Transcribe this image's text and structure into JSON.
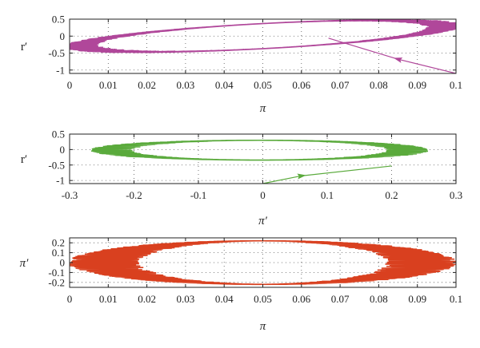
{
  "chart_data": [
    {
      "type": "line",
      "xlabel": "π",
      "ylabel": "r′",
      "xlim": [
        0,
        0.1
      ],
      "ylim": [
        -1.1,
        0.5
      ],
      "xticks": [
        "0",
        "0.01",
        "0.02",
        "0.03",
        "0.04",
        "0.05",
        "0.06",
        "0.07",
        "0.08",
        "0.09",
        "0.1"
      ],
      "yticks": [
        "0.5",
        "0",
        "-0.5",
        "-1"
      ],
      "grid": true,
      "color": "#b0479a",
      "series": [
        {
          "orbit": {
            "cx": 0.05,
            "cy": 0.0,
            "ax": 0.047,
            "ay": 0.37,
            "skew": 0.05,
            "loops": 14,
            "jitter": 0.0015
          },
          "transient": [
            [
              0.1,
              -1.1
            ],
            [
              0.085,
              -0.68
            ],
            [
              0.067,
              -0.06
            ]
          ],
          "arrow_at": [
            0.085,
            -0.68
          ]
        }
      ]
    },
    {
      "type": "line",
      "xlabel": "π′",
      "ylabel": "r′",
      "xlim": [
        -0.3,
        0.3
      ],
      "ylim": [
        -1.1,
        0.5
      ],
      "xticks": [
        "-0.3",
        "-0.2",
        "-0.1",
        "0",
        "0.1",
        "0.2",
        "0.3"
      ],
      "yticks": [
        "0.5",
        "0",
        "-0.5",
        "-1"
      ],
      "grid": true,
      "color": "#5aaa3c",
      "series": [
        {
          "orbit": {
            "cx": -0.005,
            "cy": -0.02,
            "ax": 0.23,
            "ay": 0.32,
            "skew": 0.0,
            "loops": 16,
            "jitter": 0.012
          },
          "transient": [
            [
              0.0,
              -1.1
            ],
            [
              0.06,
              -0.85
            ],
            [
              0.2,
              -0.53
            ]
          ],
          "arrow_at": [
            0.06,
            -0.85
          ]
        }
      ]
    },
    {
      "type": "line",
      "xlabel": "π",
      "ylabel": "π′",
      "xlim": [
        0,
        0.1
      ],
      "ylim": [
        -0.25,
        0.25
      ],
      "xticks": [
        "0",
        "0.01",
        "0.02",
        "0.03",
        "0.04",
        "0.05",
        "0.06",
        "0.07",
        "0.08",
        "0.09",
        "0.1"
      ],
      "yticks": [
        "0.2",
        "0.1",
        "0",
        "-0.1",
        "-0.2"
      ],
      "grid": true,
      "color": "#d9401f",
      "series": [
        {
          "orbit": {
            "cx": 0.05,
            "cy": 0.0,
            "ax": 0.041,
            "ay": 0.22,
            "skew": 0.0,
            "loops": 18,
            "jitter": 0.004
          },
          "transient": [],
          "arrow_at": null
        }
      ]
    }
  ]
}
